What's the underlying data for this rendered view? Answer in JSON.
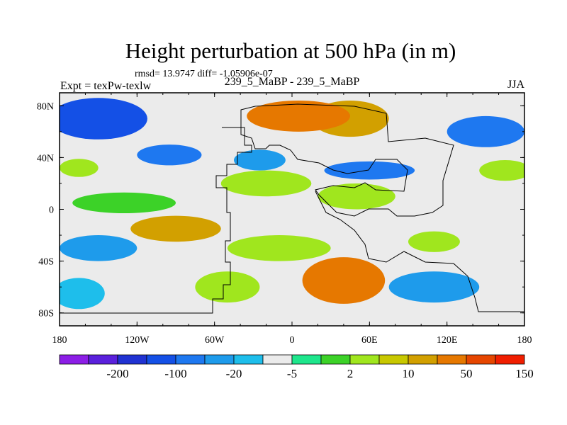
{
  "chart_data": {
    "type": "heatmap",
    "title": "Height perturbation at 500 hPa (in m)",
    "stats_text": "rmsd= 13.9747 diff= -1.05906e-07",
    "left_label": "Expt = texPw-texlw",
    "center_label": "239_5_MaBP - 239_5_MaBP",
    "right_label": "JJA",
    "xlabel": "",
    "ylabel": "",
    "xlim": [
      -180,
      180
    ],
    "ylim": [
      -90,
      90
    ],
    "x_ticks": [
      {
        "value": -180,
        "label": "180"
      },
      {
        "value": -120,
        "label": "120W"
      },
      {
        "value": -60,
        "label": "60W"
      },
      {
        "value": 0,
        "label": "0"
      },
      {
        "value": 60,
        "label": "60E"
      },
      {
        "value": 120,
        "label": "120E"
      },
      {
        "value": 180,
        "label": "180"
      }
    ],
    "y_ticks": [
      {
        "value": 80,
        "label": "80N"
      },
      {
        "value": 40,
        "label": "40N"
      },
      {
        "value": 0,
        "label": "0"
      },
      {
        "value": -40,
        "label": "40S"
      },
      {
        "value": -80,
        "label": "80S"
      }
    ],
    "colorbar": {
      "colors": [
        "#8c1ee6",
        "#5a20dc",
        "#2032d2",
        "#1450e6",
        "#1e78f0",
        "#1e9beb",
        "#1ebeeb",
        "#ebebeb",
        "#1ee68c",
        "#3cd228",
        "#a0e61e",
        "#c8c800",
        "#d2a000",
        "#e67800",
        "#e64600",
        "#f01e00"
      ],
      "labels": [
        {
          "after_index": 1,
          "label": "-200"
        },
        {
          "after_index": 3,
          "label": "-100"
        },
        {
          "after_index": 5,
          "label": "-20"
        },
        {
          "after_index": 7,
          "label": "-5"
        },
        {
          "after_index": 9,
          "label": "2"
        },
        {
          "after_index": 11,
          "label": "10"
        },
        {
          "after_index": 13,
          "label": "50"
        },
        {
          "after_index": 15,
          "label": "150"
        }
      ]
    },
    "field_features": [
      {
        "lon": -150,
        "lat": 70,
        "lon_radius": 38,
        "lat_radius": 16,
        "value": -90
      },
      {
        "lon": -95,
        "lat": 42,
        "lon_radius": 25,
        "lat_radius": 8,
        "value": -30
      },
      {
        "lon": 5,
        "lat": 72,
        "lon_radius": 40,
        "lat_radius": 12,
        "value": 60
      },
      {
        "lon": 45,
        "lat": 70,
        "lon_radius": 30,
        "lat_radius": 14,
        "value": 45
      },
      {
        "lon": 150,
        "lat": 60,
        "lon_radius": 30,
        "lat_radius": 12,
        "value": -50
      },
      {
        "lon": 165,
        "lat": 30,
        "lon_radius": 20,
        "lat_radius": 8,
        "value": 8
      },
      {
        "lon": -165,
        "lat": 32,
        "lon_radius": 15,
        "lat_radius": 7,
        "value": 8
      },
      {
        "lon": -25,
        "lat": 38,
        "lon_radius": 20,
        "lat_radius": 8,
        "value": -15
      },
      {
        "lon": 60,
        "lat": 30,
        "lon_radius": 35,
        "lat_radius": 7,
        "value": -30
      },
      {
        "lon": -20,
        "lat": 20,
        "lon_radius": 35,
        "lat_radius": 10,
        "value": 8
      },
      {
        "lon": 50,
        "lat": 10,
        "lon_radius": 30,
        "lat_radius": 10,
        "value": 5
      },
      {
        "lon": -130,
        "lat": 5,
        "lon_radius": 40,
        "lat_radius": 8,
        "value": 4
      },
      {
        "lon": -90,
        "lat": -15,
        "lon_radius": 35,
        "lat_radius": 10,
        "value": 20
      },
      {
        "lon": -150,
        "lat": -30,
        "lon_radius": 30,
        "lat_radius": 10,
        "value": -15
      },
      {
        "lon": -10,
        "lat": -30,
        "lon_radius": 40,
        "lat_radius": 10,
        "value": 6
      },
      {
        "lon": 40,
        "lat": -55,
        "lon_radius": 32,
        "lat_radius": 18,
        "value": 75
      },
      {
        "lon": 110,
        "lat": -25,
        "lon_radius": 20,
        "lat_radius": 8,
        "value": 6
      },
      {
        "lon": 110,
        "lat": -60,
        "lon_radius": 35,
        "lat_radius": 12,
        "value": -12
      },
      {
        "lon": -165,
        "lat": -65,
        "lon_radius": 20,
        "lat_radius": 12,
        "value": -10
      },
      {
        "lon": -50,
        "lat": -60,
        "lon_radius": 25,
        "lat_radius": 12,
        "value": 5
      }
    ]
  }
}
